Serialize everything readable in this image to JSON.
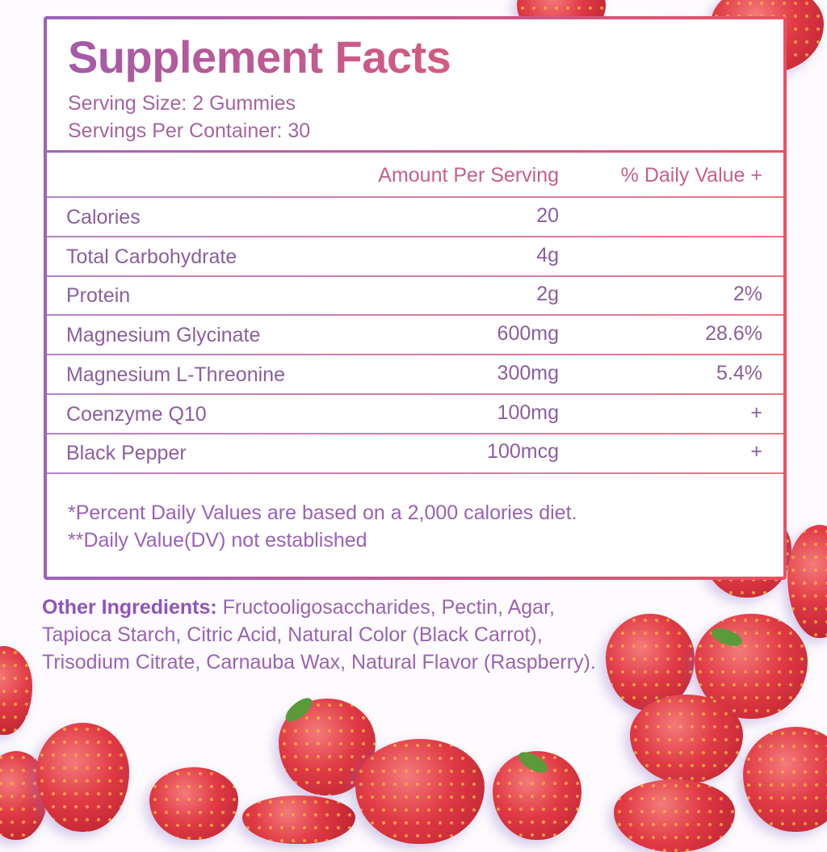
{
  "label": {
    "title": "Supplement Facts",
    "serving_size": "Serving Size: 2 Gummies",
    "servings_per_container": "Servings Per Container: 30",
    "columns": {
      "amount": "Amount Per Serving",
      "daily_value": "% Daily Value +"
    },
    "rows": [
      {
        "name": "Calories",
        "amount": "20",
        "dv": ""
      },
      {
        "name": "Total Carbohydrate",
        "amount": "4g",
        "dv": ""
      },
      {
        "name": "Protein",
        "amount": "2g",
        "dv": "2%"
      },
      {
        "name": "Magnesium Glycinate",
        "amount": "600mg",
        "dv": "28.6%"
      },
      {
        "name": "Magnesium L-Threonine",
        "amount": "300mg",
        "dv": "5.4%"
      },
      {
        "name": "Coenzyme Q10",
        "amount": "100mg",
        "dv": "+"
      },
      {
        "name": "Black Pepper",
        "amount": "100mcg",
        "dv": "+"
      }
    ],
    "footnote_1": "*Percent Daily Values are based on a 2,000 calories diet.",
    "footnote_2": "**Daily Value(DV) not established"
  },
  "ingredients": {
    "label": "Other Ingredients:",
    "text": " Fructooligosaccharides, Pectin, Agar, Tapioca Starch, Citric Acid, Natural Color (Black Carrot), Trisodium Citrate, Carnauba Wax, Natural Flavor (Raspberry)."
  },
  "colors": {
    "purple": "#9c62bf",
    "pink": "#d2567f",
    "red": "#ec5060"
  }
}
